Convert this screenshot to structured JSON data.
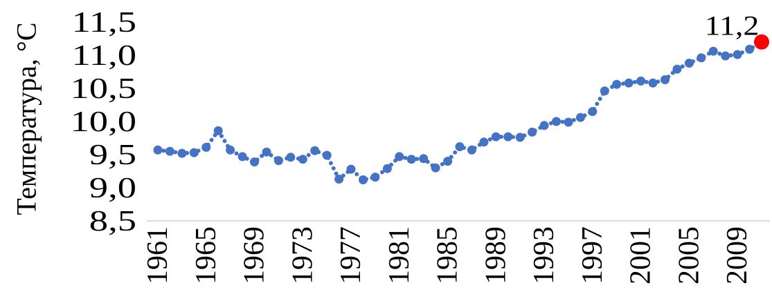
{
  "chart_data": {
    "type": "line",
    "ylabel": "Температура, °С",
    "x": [
      1961,
      1962,
      1963,
      1964,
      1965,
      1966,
      1967,
      1968,
      1969,
      1970,
      1971,
      1972,
      1973,
      1974,
      1975,
      1976,
      1977,
      1978,
      1979,
      1980,
      1981,
      1982,
      1983,
      1984,
      1985,
      1986,
      1987,
      1988,
      1989,
      1990,
      1991,
      1992,
      1993,
      1994,
      1995,
      1996,
      1997,
      1998,
      1999,
      2000,
      2001,
      2002,
      2003,
      2004,
      2005,
      2006,
      2007,
      2008,
      2009,
      2010,
      2011
    ],
    "series": [
      {
        "color": "#4472C4",
        "values": [
          9.57,
          9.55,
          9.52,
          9.53,
          9.61,
          9.86,
          9.57,
          9.47,
          9.39,
          9.54,
          9.41,
          9.46,
          9.43,
          9.56,
          9.49,
          9.13,
          9.28,
          9.12,
          9.16,
          9.29,
          9.47,
          9.43,
          9.44,
          9.3,
          9.4,
          9.62,
          9.57,
          9.69,
          9.77,
          9.77,
          9.76,
          9.84,
          9.94,
          10.0,
          9.99,
          10.06,
          10.15,
          10.46,
          10.56,
          10.58,
          10.61,
          10.58,
          10.63,
          10.79,
          10.88,
          10.96,
          11.06,
          10.99,
          11.01,
          11.09,
          11.2
        ]
      }
    ],
    "ylim": [
      8.5,
      11.5
    ],
    "yticks": [
      {
        "value": 8.5,
        "label": "8,5"
      },
      {
        "value": 9.0,
        "label": "9,0"
      },
      {
        "value": 9.5,
        "label": "9,5"
      },
      {
        "value": 10.0,
        "label": "10,0"
      },
      {
        "value": 10.5,
        "label": "10,5"
      },
      {
        "value": 11.0,
        "label": "11,0"
      },
      {
        "value": 11.5,
        "label": "11,5"
      }
    ],
    "xticks": [
      {
        "value": 1961,
        "label": "1961"
      },
      {
        "value": 1965,
        "label": "1965"
      },
      {
        "value": 1969,
        "label": "1969"
      },
      {
        "value": 1973,
        "label": "1973"
      },
      {
        "value": 1977,
        "label": "1977"
      },
      {
        "value": 1981,
        "label": "1981"
      },
      {
        "value": 1985,
        "label": "1985"
      },
      {
        "value": 1989,
        "label": "1989"
      },
      {
        "value": 1993,
        "label": "1993"
      },
      {
        "value": 1997,
        "label": "1997"
      },
      {
        "value": 2001,
        "label": "2001"
      },
      {
        "value": 2005,
        "label": "2005"
      },
      {
        "value": 2009,
        "label": "2009"
      }
    ],
    "data_labels": [
      {
        "x": 2011,
        "y": 11.2,
        "label": "11,2",
        "color": "#FF0000"
      }
    ],
    "grid": false,
    "axis_color": "#D9D9D9"
  }
}
